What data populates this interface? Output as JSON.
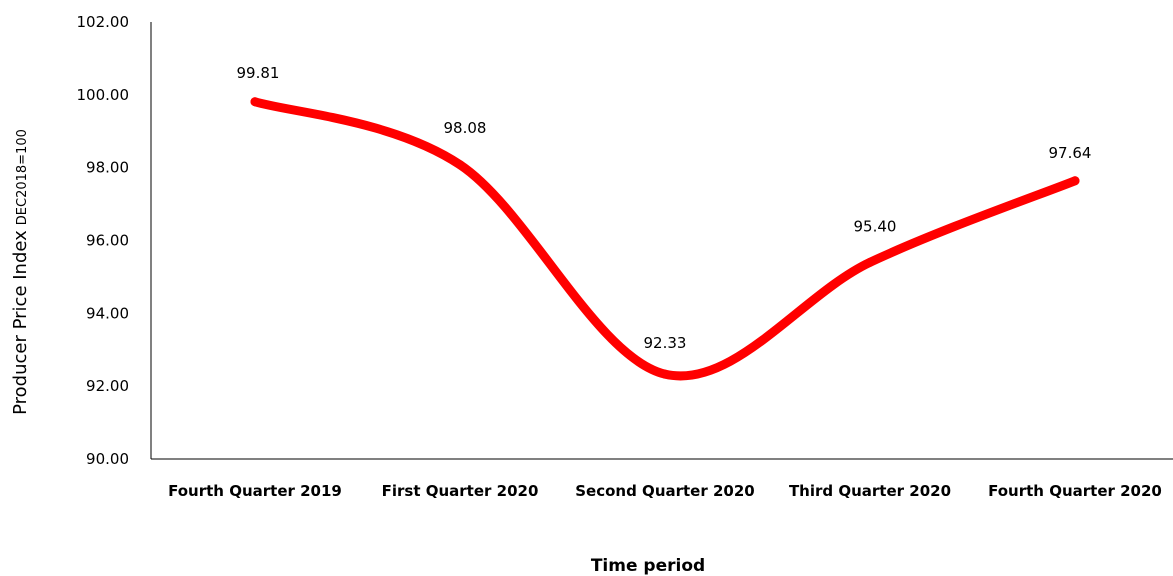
{
  "chart_data": {
    "type": "line",
    "categories": [
      "Fourth Quarter 2019",
      "First Quarter 2020",
      "Second Quarter 2020",
      "Third Quarter 2020",
      "Fourth Quarter 2020"
    ],
    "values": [
      99.81,
      98.08,
      92.33,
      95.4,
      97.64
    ],
    "data_labels": [
      "99.81",
      "98.08",
      "92.33",
      "95.40",
      "97.64"
    ],
    "title": "",
    "xlabel": "Time period",
    "ylabel": "Producer Price Index",
    "ylabel_suffix": "DEC2018=100",
    "ylim": [
      90,
      102
    ],
    "y_ticks": [
      "90.00",
      "92.00",
      "94.00",
      "96.00",
      "98.00",
      "100.00",
      "102.00"
    ],
    "smooth": true,
    "grid": false,
    "legend": "none",
    "line_color": "#ff0000"
  }
}
